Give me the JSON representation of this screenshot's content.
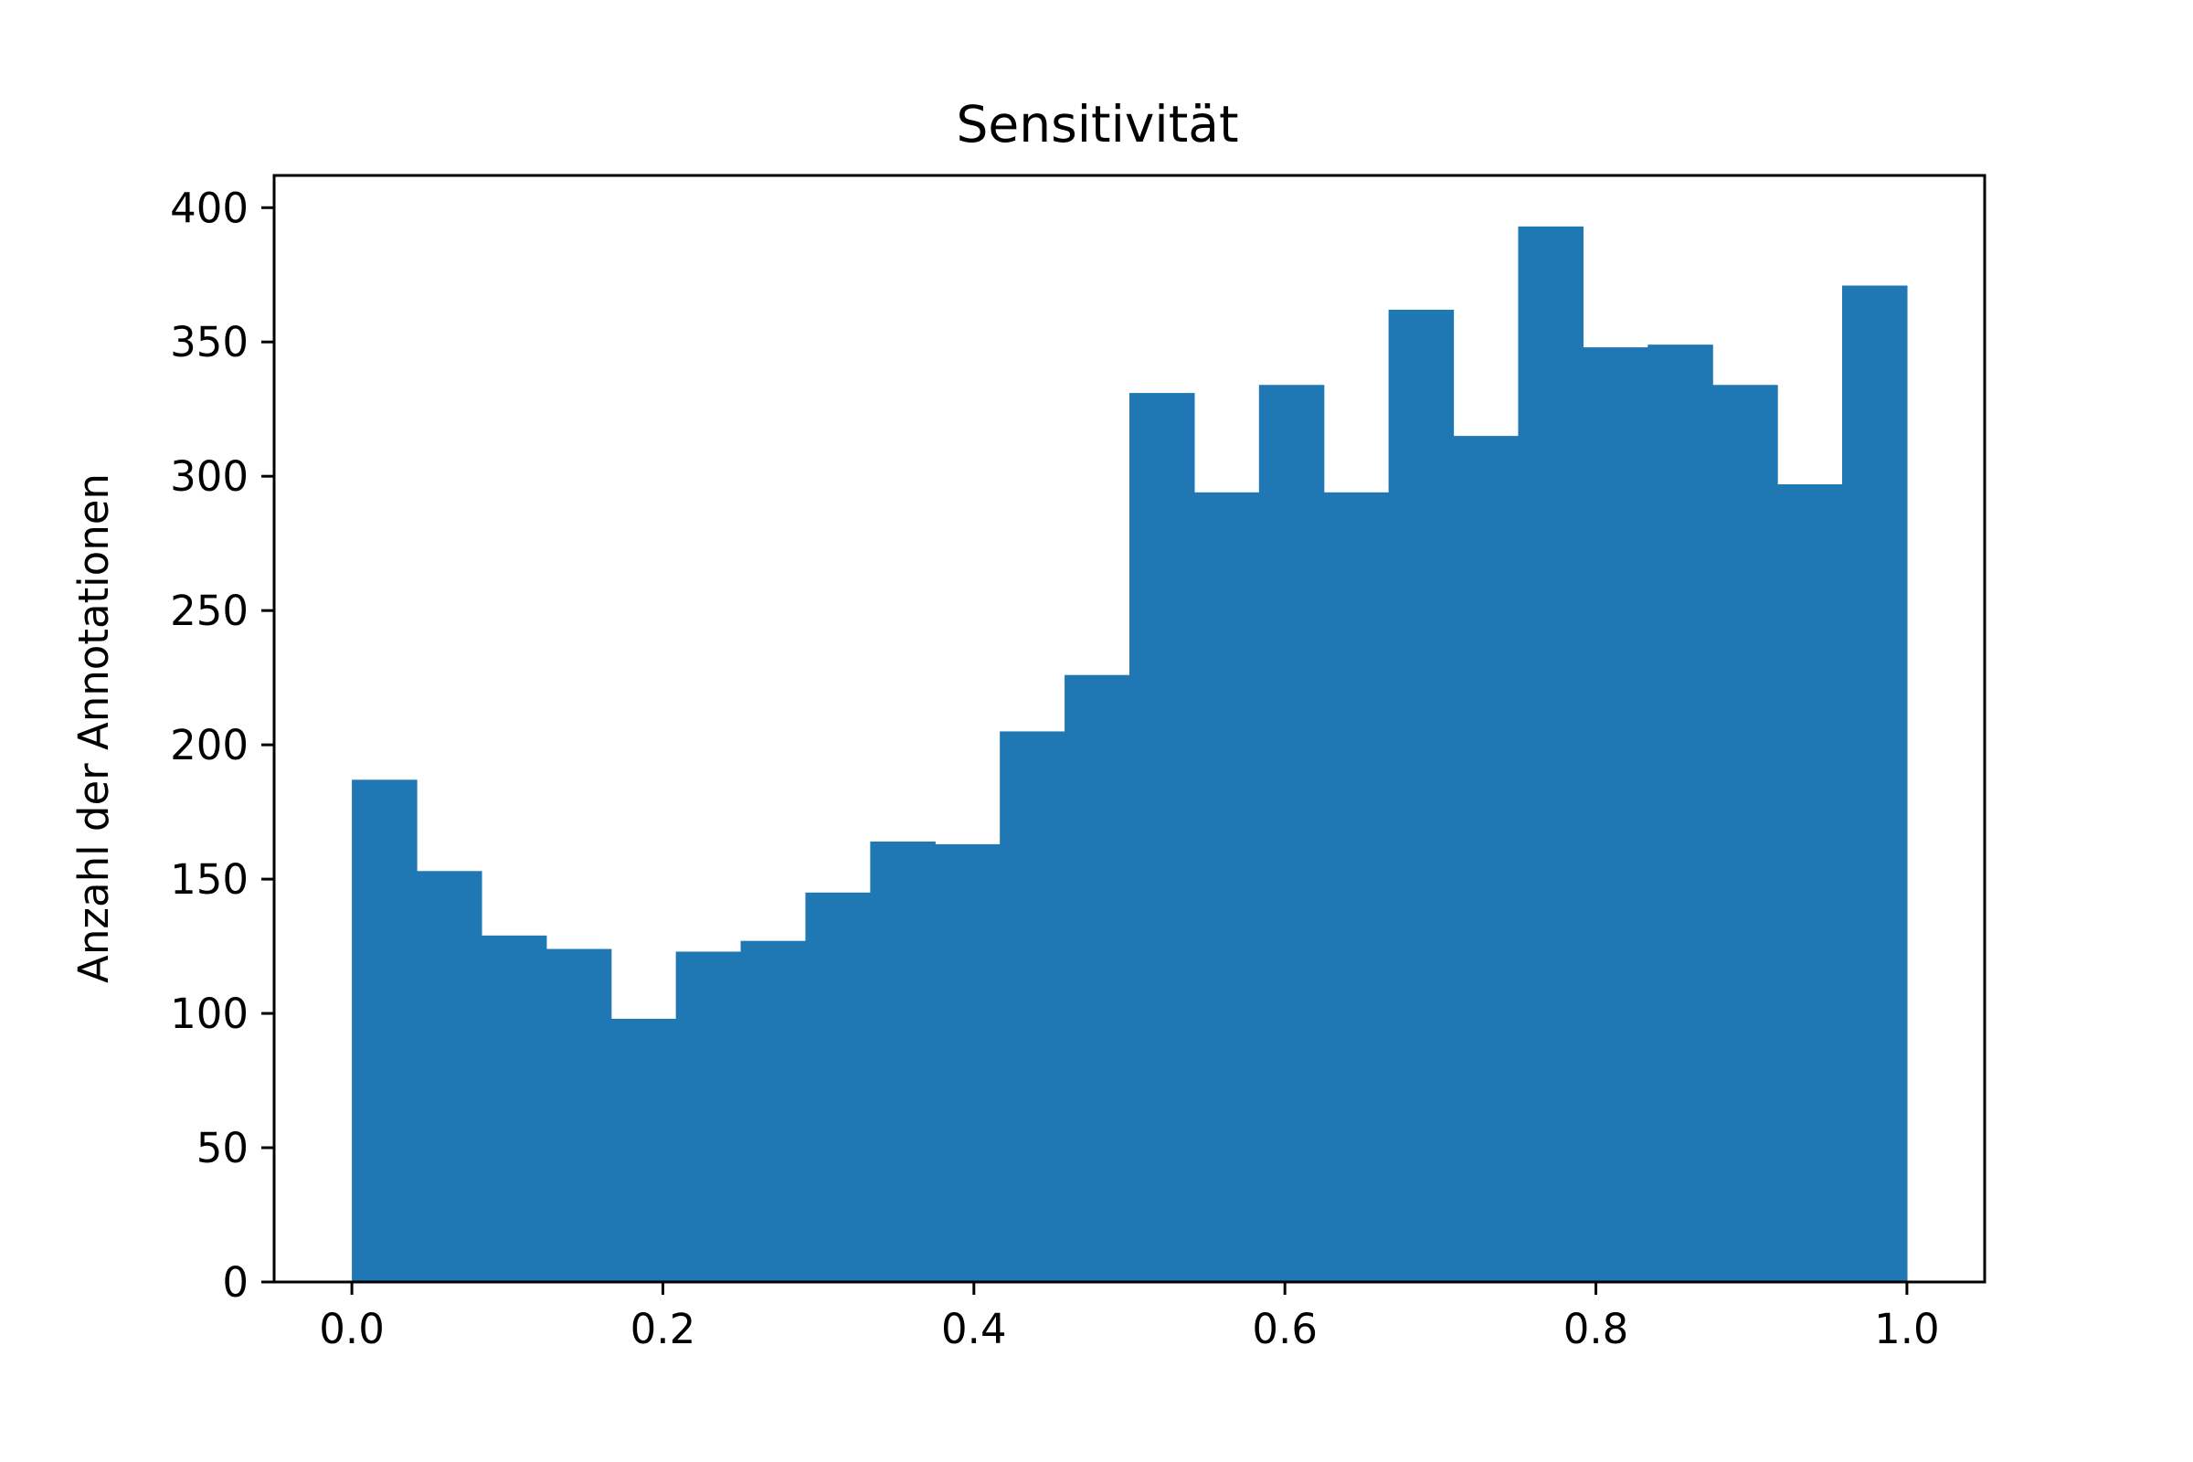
{
  "chart_data": {
    "type": "bar",
    "title": "Sensitivität",
    "xlabel": "",
    "ylabel": "Anzahl der Annotationen",
    "xlim": [
      -0.05,
      1.05
    ],
    "ylim": [
      0,
      412
    ],
    "bin_edges": [
      0.0,
      0.041667,
      0.083333,
      0.125,
      0.166667,
      0.208333,
      0.25,
      0.291667,
      0.333333,
      0.375,
      0.416667,
      0.458333,
      0.5,
      0.541667,
      0.583333,
      0.625,
      0.666667,
      0.708333,
      0.75,
      0.791667,
      0.833333,
      0.875,
      0.916667,
      0.958333,
      1.0
    ],
    "values": [
      187,
      153,
      129,
      124,
      98,
      123,
      127,
      145,
      164,
      163,
      205,
      226,
      331,
      294,
      334,
      294,
      362,
      315,
      393,
      348,
      349,
      334,
      297,
      371
    ],
    "x_ticks": [
      0.0,
      0.2,
      0.4,
      0.6,
      0.8,
      1.0
    ],
    "x_tick_labels": [
      "0.0",
      "0.2",
      "0.4",
      "0.6",
      "0.8",
      "1.0"
    ],
    "y_ticks": [
      0,
      50,
      100,
      150,
      200,
      250,
      300,
      350,
      400
    ],
    "y_tick_labels": [
      "0",
      "50",
      "100",
      "150",
      "200",
      "250",
      "300",
      "350",
      "400"
    ],
    "grid": false,
    "bar_color": "#1f77b4",
    "axis_color": "#000000"
  }
}
